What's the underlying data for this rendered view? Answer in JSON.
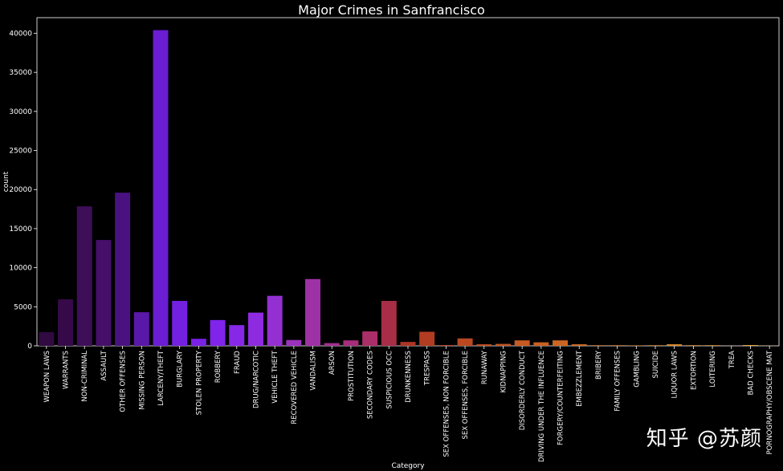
{
  "chart_data": {
    "type": "bar",
    "title": "Major Crimes in Sanfrancisco",
    "xlabel": "Category",
    "ylabel": "count",
    "ylim": [
      0,
      42000
    ],
    "yticks": [
      0,
      5000,
      10000,
      15000,
      20000,
      25000,
      30000,
      35000,
      40000
    ],
    "grid": false,
    "categories": [
      "WEAPON LAWS",
      "WARRANTS",
      "NON-CRIMINAL",
      "ASSAULT",
      "OTHER OFFENSES",
      "MISSING PERSON",
      "LARCENY/THEFT",
      "BURGLARY",
      "STOLEN PROPERTY",
      "ROBBERY",
      "FRAUD",
      "DRUG/NARCOTIC",
      "VEHICLE THEFT",
      "RECOVERED VEHICLE",
      "VANDALISM",
      "ARSON",
      "PROSTITUTION",
      "SECONDARY CODES",
      "SUSPICIOUS OCC",
      "DRUNKENNESS",
      "TRESPASS",
      "SEX OFFENSES, NON FORCIBLE",
      "SEX OFFENSES, FORCIBLE",
      "RUNAWAY",
      "KIDNAPPING",
      "DISORDERLY CONDUCT",
      "DRIVING UNDER THE INFLUENCE",
      "FORGERY/COUNTERFEITING",
      "EMBEZZLEMENT",
      "BRIBERY",
      "FAMILY OFFENSES",
      "GAMBLING",
      "SUICIDE",
      "LIQUOR LAWS",
      "EXTORTION",
      "LOITERING",
      "TREA",
      "BAD CHECKS",
      "PORNOGRAPHY/OBSCENE MAT"
    ],
    "values": [
      1750,
      5950,
      17850,
      13550,
      19600,
      4300,
      40400,
      5750,
      900,
      3300,
      2650,
      4250,
      6400,
      750,
      8550,
      350,
      700,
      1850,
      5750,
      500,
      1800,
      100,
      950,
      200,
      250,
      700,
      450,
      700,
      200,
      80,
      80,
      60,
      80,
      200,
      80,
      80,
      10,
      100,
      20
    ],
    "colors": [
      "#300a40",
      "#360a48",
      "#3e0e58",
      "#450f6a",
      "#4a1280",
      "#5a18a8",
      "#6a1dd2",
      "#7420e0",
      "#7a21e8",
      "#8024ec",
      "#8728e8",
      "#8e2be0",
      "#9430d2",
      "#9a32be",
      "#9e31a6",
      "#a22f90",
      "#a62e7c",
      "#aa2e68",
      "#a82e48",
      "#ad3524",
      "#b23c22",
      "#b64222",
      "#bb4821",
      "#bf4e21",
      "#c35421",
      "#c65a22",
      "#c96022",
      "#cc6623",
      "#cf6c24",
      "#d27326",
      "#d57928",
      "#d87f2a",
      "#da852c",
      "#dd8c2e",
      "#df9231",
      "#e19834",
      "#e39e37",
      "#e5a43a",
      "#e7aa3e"
    ]
  },
  "watermark": "知乎 @苏颜"
}
